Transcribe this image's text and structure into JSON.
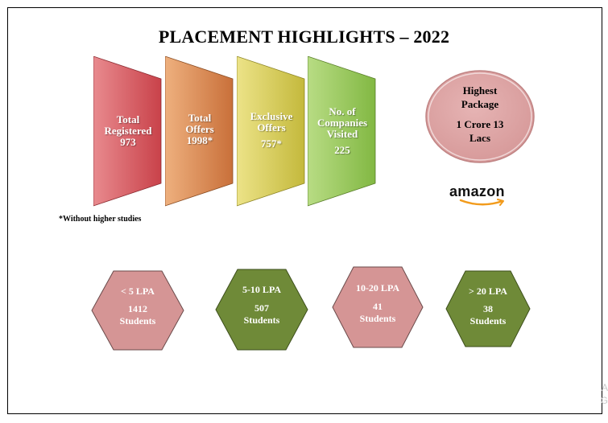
{
  "title": "PLACEMENT HIGHLIGHTS – 2022",
  "stats": [
    {
      "lines": [
        "Total",
        "Registered",
        "973"
      ],
      "color": "#c9424a",
      "light": "#e88a8e"
    },
    {
      "lines": [
        "Total",
        "Offers",
        "1998*"
      ],
      "color": "#c9703a",
      "light": "#eeb07e"
    },
    {
      "lines": [
        "Exclusive",
        "Offers",
        "757*"
      ],
      "color": "#c4b93c",
      "light": "#ece388"
    },
    {
      "lines": [
        "No. of",
        "Companies",
        "Visited",
        "225"
      ],
      "color": "#82b843",
      "light": "#b8dc84"
    }
  ],
  "footnote": "*Without higher studies",
  "highest": {
    "line1": "Highest",
    "line2": "Package",
    "line3": "1 Crore 13",
    "line4": "Lacs",
    "fill": "#d79a9a"
  },
  "company": "amazon",
  "bands": [
    {
      "range": "< 5 LPA",
      "count": "1412",
      "unit": "Students",
      "fill": "#d59595"
    },
    {
      "range": "5-10 LPA",
      "count": "507",
      "unit": "Students",
      "fill": "#6f8a38"
    },
    {
      "range": "10-20 LPA",
      "count": "41",
      "unit": "Students",
      "fill": "#d59595"
    },
    {
      "range": "> 20 LPA",
      "count": "38",
      "unit": "Students",
      "fill": "#6f8a38"
    }
  ],
  "corner_text": "A\nG"
}
